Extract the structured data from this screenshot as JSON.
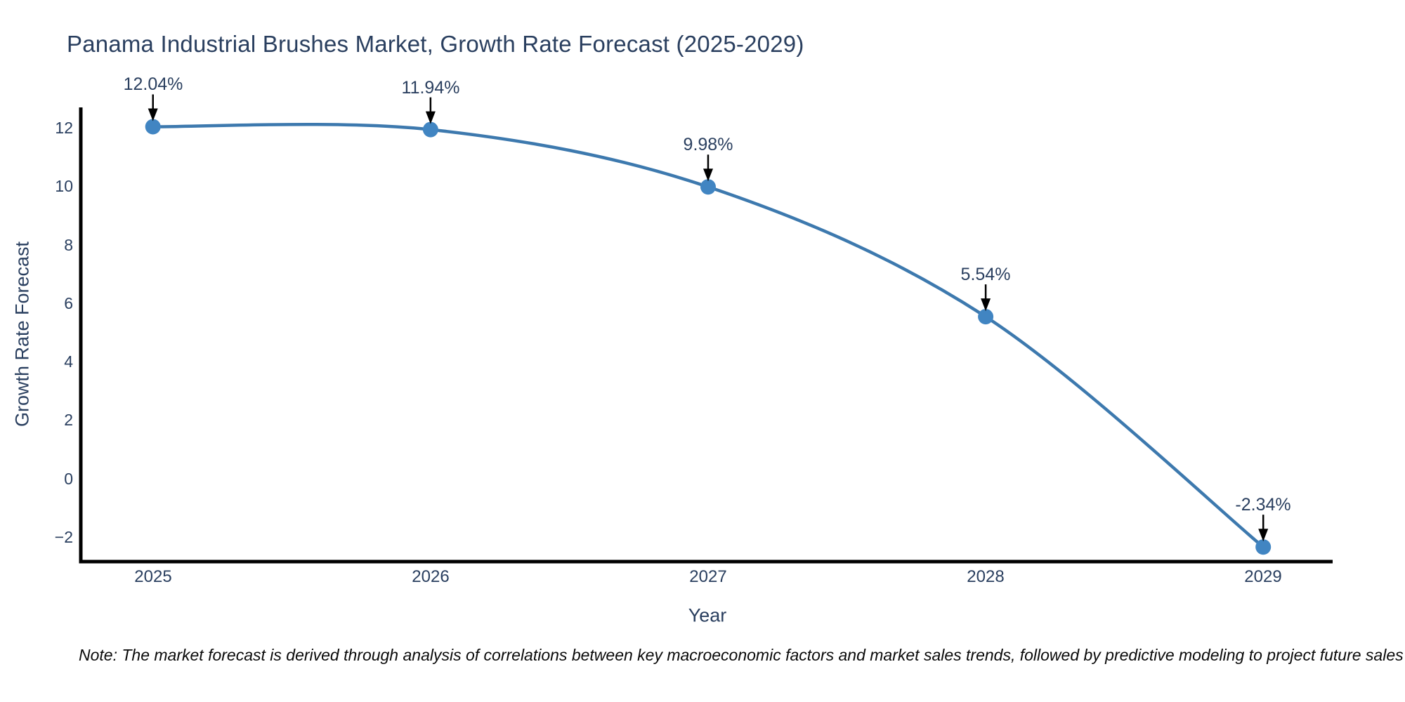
{
  "title": "Panama Industrial Brushes Market, Growth Rate Forecast (2025-2029)",
  "note": "Note: The market forecast is derived through analysis of correlations between key macroeconomic factors and market sales trends, followed by predictive modeling to project future sales",
  "colors": {
    "background": "#ffffff",
    "text": "#2a3f5f",
    "note_text": "#0a0a0a",
    "axis_line": "#000000",
    "series_line": "#3d79ae",
    "marker_fill": "#4185c2",
    "annotation_arrow": "#000000"
  },
  "chart_data": {
    "type": "line",
    "title": "Panama Industrial Brushes Market, Growth Rate Forecast (2025-2029)",
    "xlabel": "Year",
    "ylabel": "Growth Rate Forecast",
    "x": [
      2025,
      2026,
      2027,
      2028,
      2029
    ],
    "series": [
      {
        "name": "Growth Rate Forecast",
        "values": [
          12.04,
          11.94,
          9.98,
          5.54,
          -2.34
        ]
      }
    ],
    "point_labels": [
      "12.04%",
      "11.94%",
      "9.98%",
      "5.54%",
      "-2.34%"
    ],
    "xticks": {
      "values": [
        2025,
        2026,
        2027,
        2028,
        2029
      ],
      "labels": [
        "2025",
        "2026",
        "2027",
        "2028",
        "2029"
      ]
    },
    "yticks": {
      "values": [
        12,
        10,
        8,
        6,
        4,
        2,
        0,
        -2
      ],
      "labels": [
        "12",
        "10",
        "8",
        "6",
        "4",
        "2",
        "0",
        "−2"
      ]
    },
    "xlim": [
      2024.74,
      2029.25
    ],
    "ylim": [
      -2.84,
      12.7
    ],
    "grid": false,
    "legend": "none",
    "line_shape": "spline",
    "markers": true
  }
}
